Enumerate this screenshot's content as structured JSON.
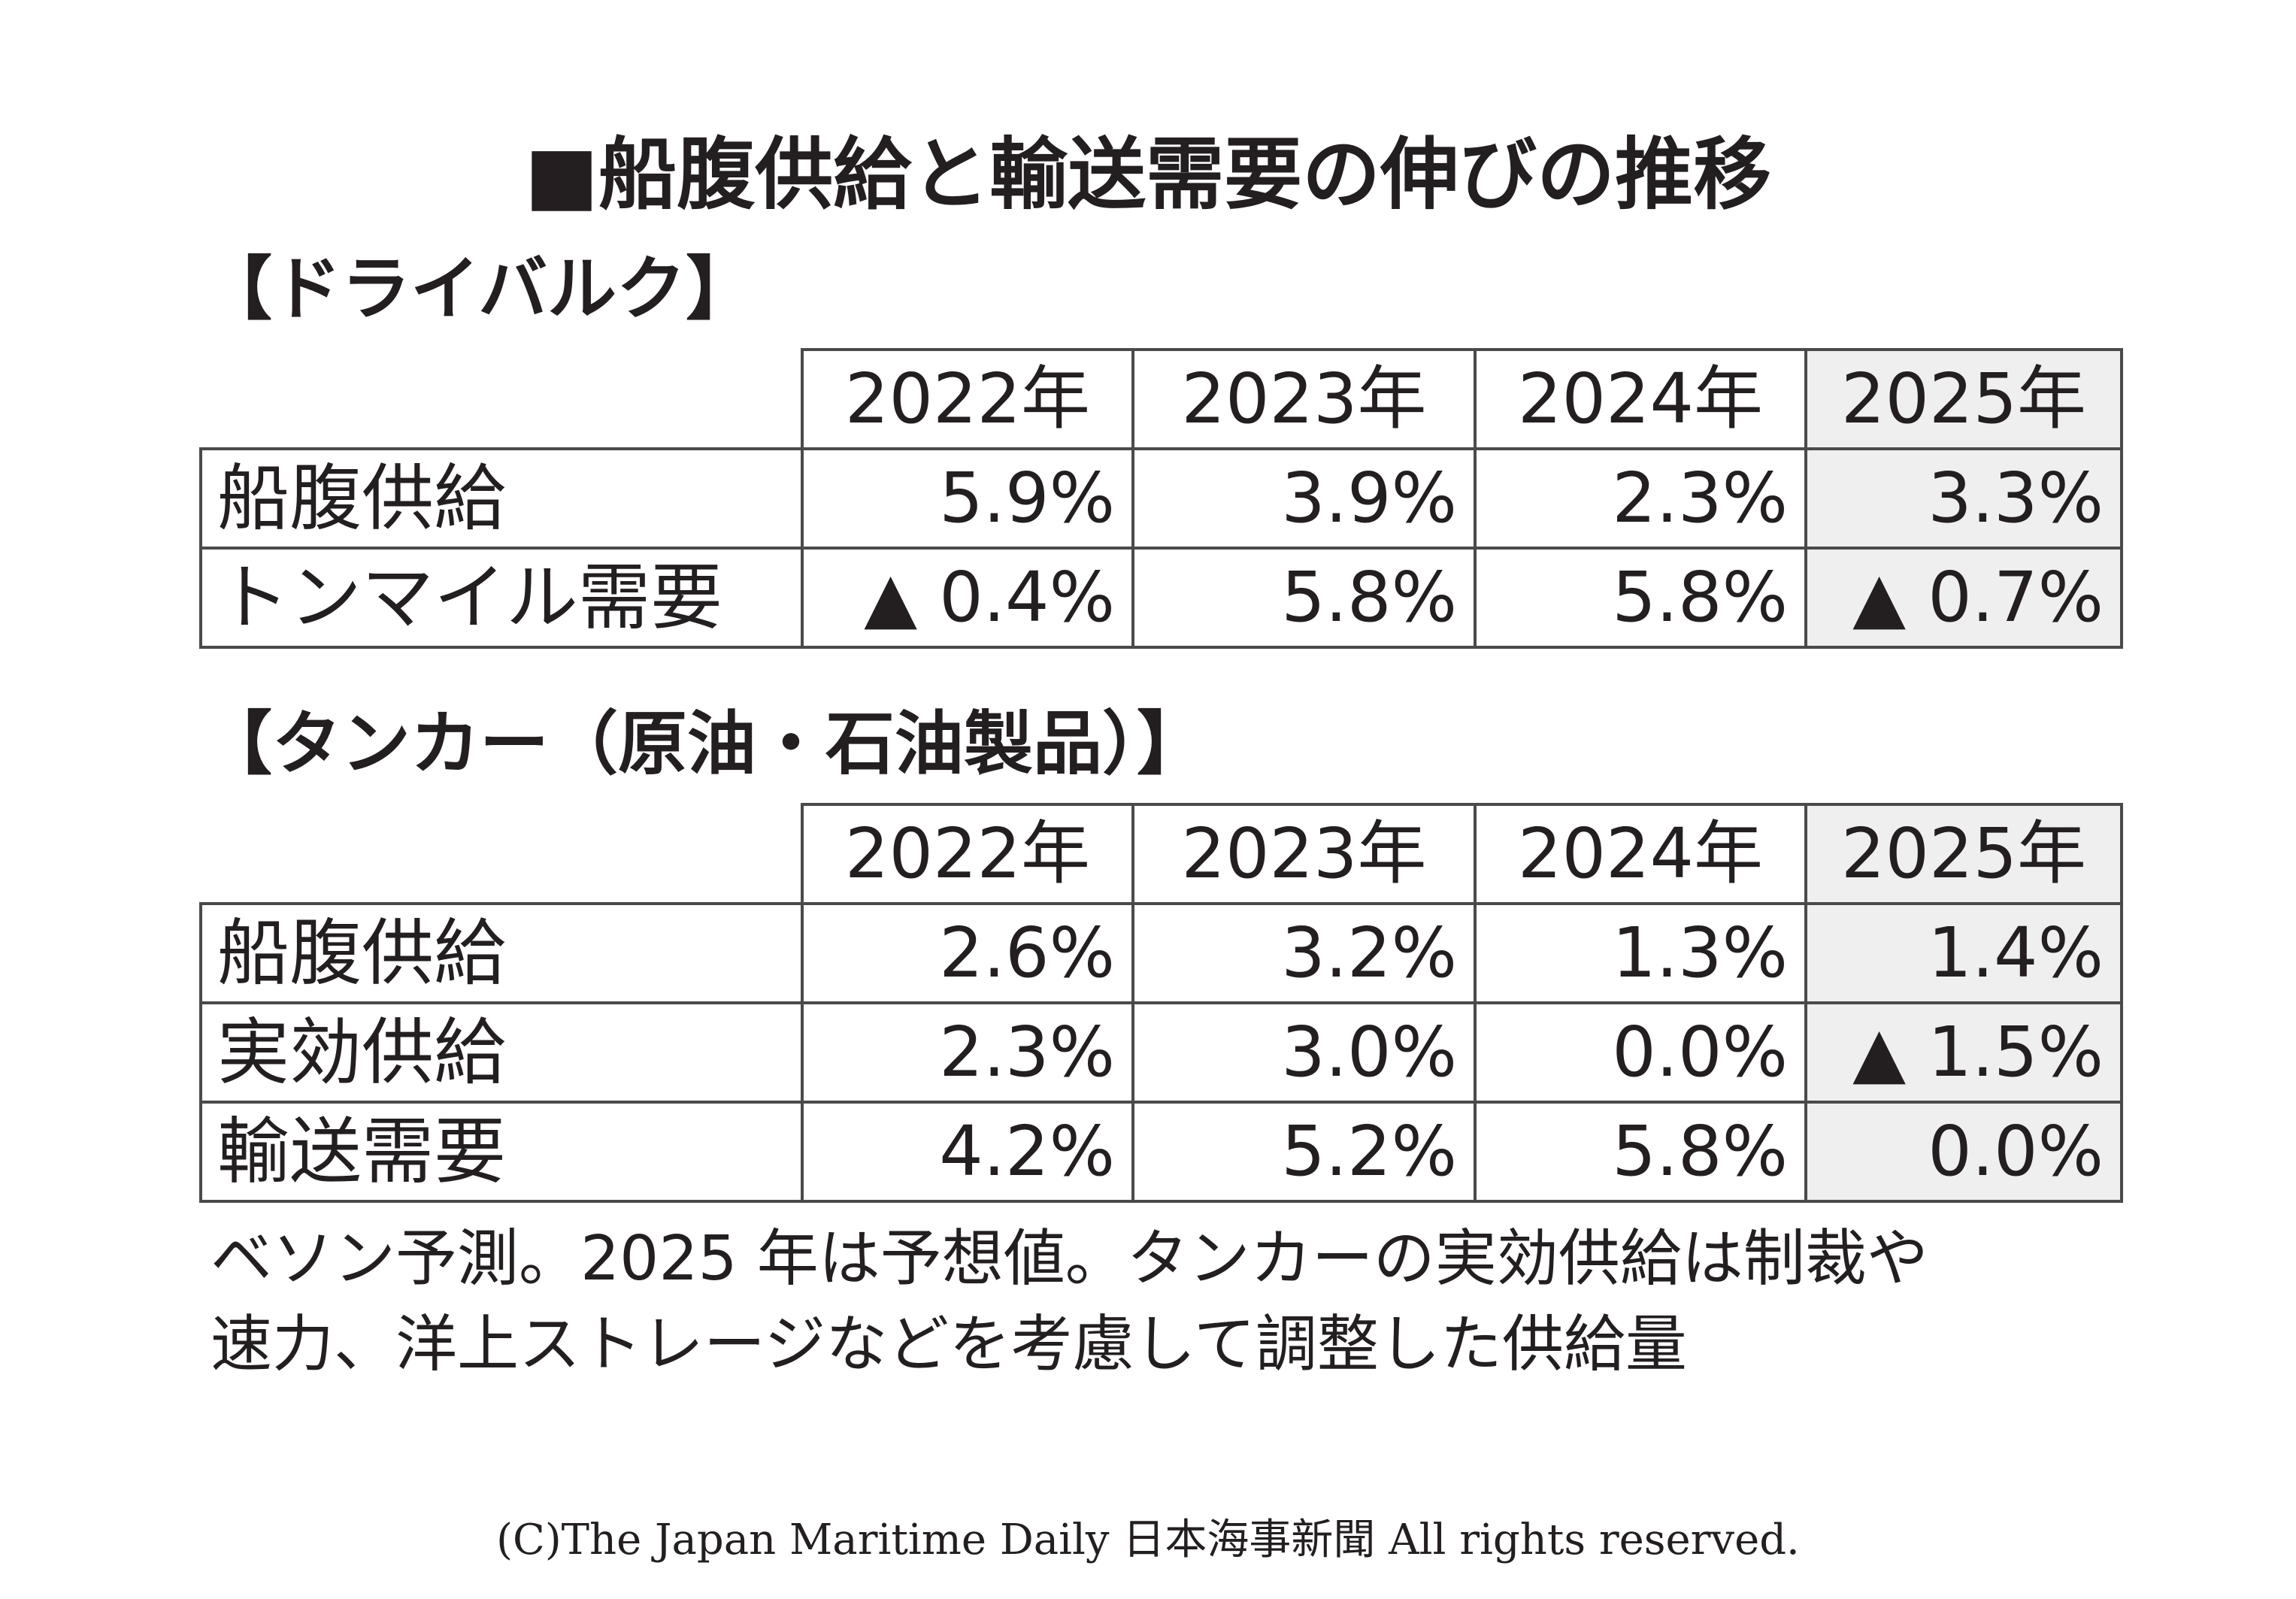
{
  "title": "■船腹供給と輸送需要の伸びの推移",
  "dry_bulk": {
    "section_title": "【ドライバルク】",
    "headers": [
      "2022年",
      "2023年",
      "2024年",
      "2025年"
    ],
    "rows": [
      {
        "label": "船腹供給",
        "values": [
          "5.9%",
          "3.9%",
          "2.3%",
          "3.3%"
        ]
      },
      {
        "label": "トンマイル需要",
        "values": [
          "▲ 0.4%",
          "5.8%",
          "5.8%",
          "▲ 0.7%"
        ]
      }
    ]
  },
  "tanker": {
    "section_title": "【タンカー（原油・石油製品）】",
    "headers": [
      "2022年",
      "2023年",
      "2024年",
      "2025年"
    ],
    "rows": [
      {
        "label": "船腹供給",
        "values": [
          "2.6%",
          "3.2%",
          "1.3%",
          "1.4%"
        ]
      },
      {
        "label": "実効供給",
        "values": [
          "2.3%",
          "3.0%",
          "0.0%",
          "▲ 1.5%"
        ]
      },
      {
        "label": "輸送需要",
        "values": [
          "4.2%",
          "5.2%",
          "5.8%",
          "0.0%"
        ]
      }
    ]
  },
  "note": {
    "line1": "ベソン予測。2025 年は予想値。タンカーの実効供給は制裁や",
    "line2": "速力、洋上ストレージなどを考慮して調整した供給量"
  },
  "copyright": "(C)The Japan Maritime Daily 日本海事新聞 All rights reserved.",
  "colors": {
    "text": "#231f20",
    "border": "#4a4a4a",
    "forecast_shade": "#efefef"
  }
}
